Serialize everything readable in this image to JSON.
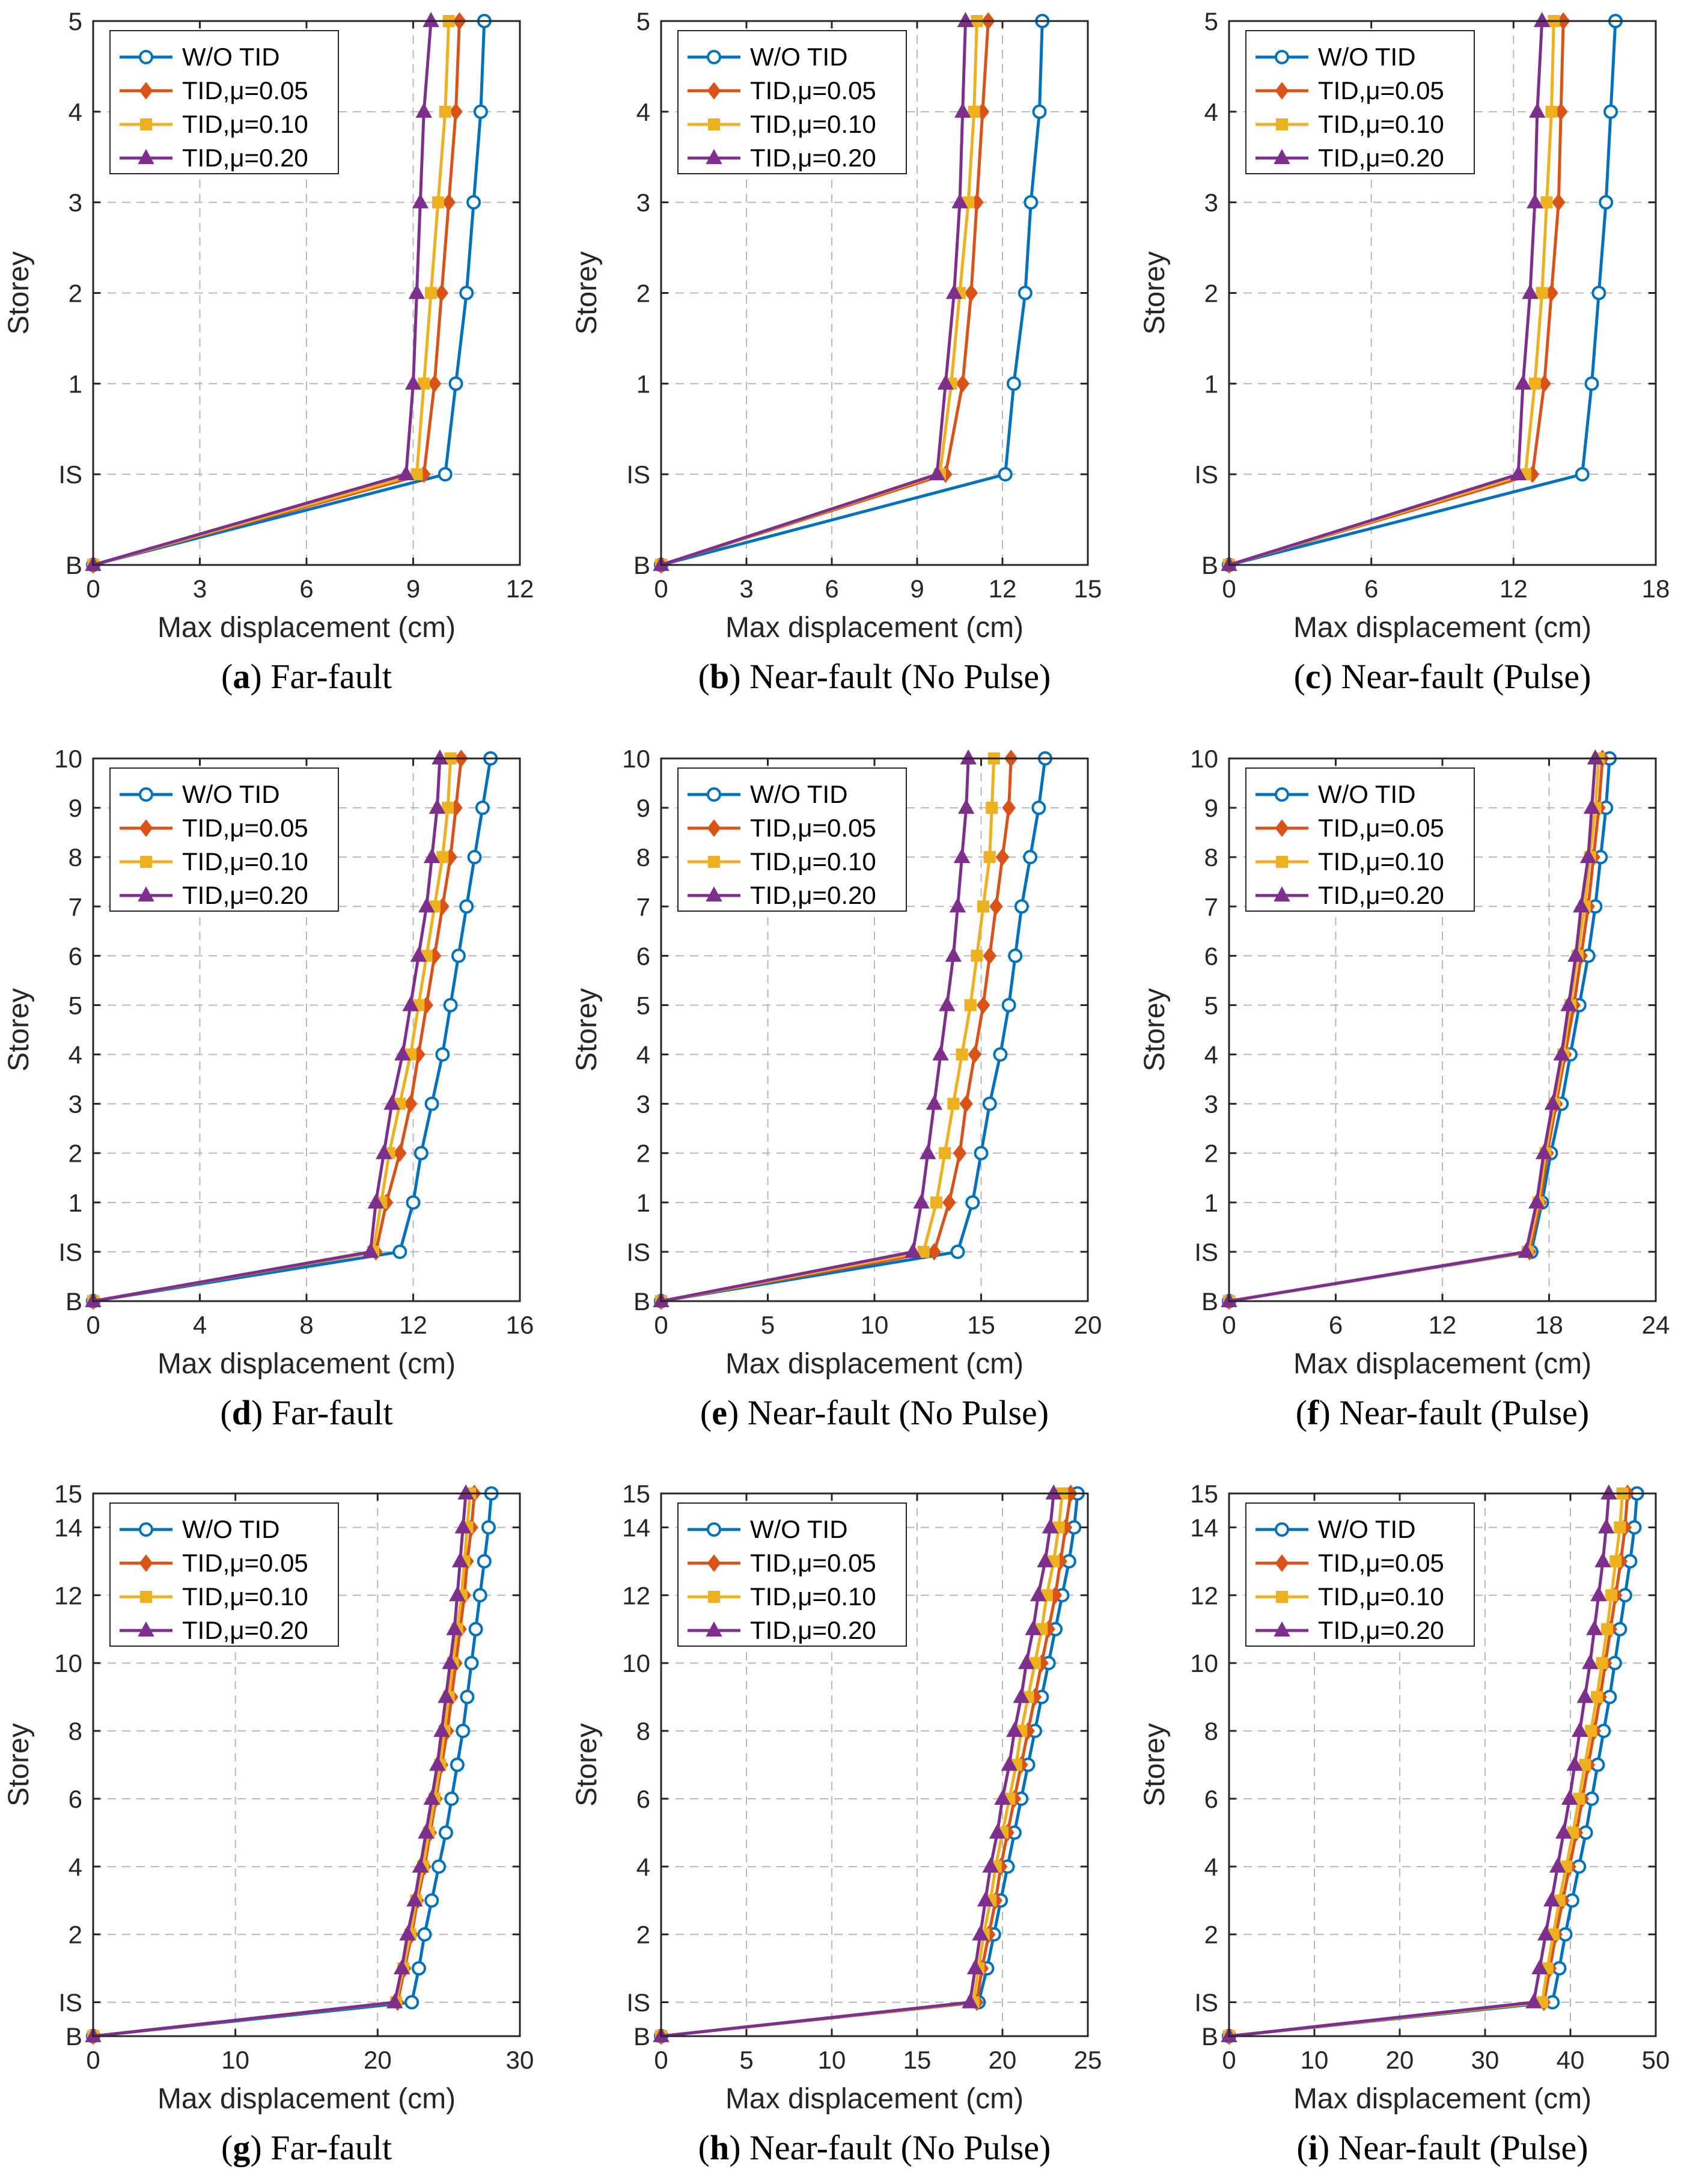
{
  "legend": {
    "entries": [
      "W/O TID",
      "TID,μ=0.05",
      "TID,μ=0.10",
      "TID,μ=0.20"
    ]
  },
  "series_styles": [
    {
      "name": "W/O TID",
      "color": "#0072BD",
      "marker": "circle"
    },
    {
      "name": "TID,μ=0.05",
      "color": "#D95319",
      "marker": "diamond"
    },
    {
      "name": "TID,μ=0.10",
      "color": "#EDB120",
      "marker": "square"
    },
    {
      "name": "TID,μ=0.20",
      "color": "#7E2F8E",
      "marker": "triangle"
    }
  ],
  "chart_data": [
    {
      "type": "line",
      "panel": "a",
      "caption_letter": "a",
      "caption_text": " Far-fault",
      "xlabel": "Max displacement (cm)",
      "ylabel": "Storey",
      "xlim": [
        0,
        12
      ],
      "xticks": [
        0,
        3,
        6,
        9,
        12
      ],
      "y_levels": [
        "B",
        "IS",
        "1",
        "2",
        "3",
        "4",
        "5"
      ],
      "yticks": [
        "B",
        "IS",
        "1",
        "2",
        "3",
        "4",
        "5"
      ],
      "grid": true,
      "legend_position": "top-left",
      "series": [
        {
          "name": "W/O TID",
          "values": [
            0,
            9.9,
            10.2,
            10.5,
            10.7,
            10.9,
            11.0
          ]
        },
        {
          "name": "TID,μ=0.05",
          "values": [
            0,
            9.3,
            9.6,
            9.8,
            10.0,
            10.2,
            10.3
          ]
        },
        {
          "name": "TID,μ=0.10",
          "values": [
            0,
            9.1,
            9.3,
            9.5,
            9.7,
            9.9,
            10.0
          ]
        },
        {
          "name": "TID,μ=0.20",
          "values": [
            0,
            8.8,
            9.0,
            9.1,
            9.2,
            9.3,
            9.5
          ]
        }
      ]
    },
    {
      "type": "line",
      "panel": "b",
      "caption_letter": "b",
      "caption_text": " Near-fault (No Pulse)",
      "xlabel": "Max displacement (cm)",
      "ylabel": "Storey",
      "xlim": [
        0,
        15
      ],
      "xticks": [
        0,
        3,
        6,
        9,
        12,
        15
      ],
      "y_levels": [
        "B",
        "IS",
        "1",
        "2",
        "3",
        "4",
        "5"
      ],
      "yticks": [
        "B",
        "IS",
        "1",
        "2",
        "3",
        "4",
        "5"
      ],
      "grid": true,
      "legend_position": "top-left",
      "series": [
        {
          "name": "W/O TID",
          "values": [
            0,
            12.1,
            12.4,
            12.8,
            13.0,
            13.3,
            13.4
          ]
        },
        {
          "name": "TID,μ=0.05",
          "values": [
            0,
            10.0,
            10.6,
            10.9,
            11.1,
            11.3,
            11.5
          ]
        },
        {
          "name": "TID,μ=0.10",
          "values": [
            0,
            9.8,
            10.2,
            10.5,
            10.8,
            11.0,
            11.1
          ]
        },
        {
          "name": "TID,μ=0.20",
          "values": [
            0,
            9.7,
            10.0,
            10.3,
            10.5,
            10.6,
            10.7
          ]
        }
      ]
    },
    {
      "type": "line",
      "panel": "c",
      "caption_letter": "c",
      "caption_text": " Near-fault (Pulse)",
      "xlabel": "Max displacement (cm)",
      "ylabel": "Storey",
      "xlim": [
        0,
        18
      ],
      "xticks": [
        0,
        6,
        12,
        18
      ],
      "y_levels": [
        "B",
        "IS",
        "1",
        "2",
        "3",
        "4",
        "5"
      ],
      "yticks": [
        "B",
        "IS",
        "1",
        "2",
        "3",
        "4",
        "5"
      ],
      "grid": true,
      "legend_position": "top-left",
      "series": [
        {
          "name": "W/O TID",
          "values": [
            0,
            14.9,
            15.3,
            15.6,
            15.9,
            16.1,
            16.3
          ]
        },
        {
          "name": "TID,μ=0.05",
          "values": [
            0,
            12.8,
            13.3,
            13.6,
            13.9,
            14.0,
            14.1
          ]
        },
        {
          "name": "TID,μ=0.10",
          "values": [
            0,
            12.5,
            12.9,
            13.2,
            13.4,
            13.6,
            13.7
          ]
        },
        {
          "name": "TID,μ=0.20",
          "values": [
            0,
            12.2,
            12.4,
            12.7,
            12.9,
            13.0,
            13.2
          ]
        }
      ]
    },
    {
      "type": "line",
      "panel": "d",
      "caption_letter": "d",
      "caption_text": " Far-fault",
      "xlabel": "Max displacement (cm)",
      "ylabel": "Storey",
      "xlim": [
        0,
        16
      ],
      "xticks": [
        0,
        4,
        8,
        12,
        16
      ],
      "y_levels": [
        "B",
        "IS",
        "1",
        "2",
        "3",
        "4",
        "5",
        "6",
        "7",
        "8",
        "9",
        "10"
      ],
      "yticks": [
        "B",
        "IS",
        "1",
        "2",
        "3",
        "4",
        "5",
        "6",
        "7",
        "8",
        "9",
        "10"
      ],
      "grid": true,
      "legend_position": "top-left",
      "series": [
        {
          "name": "W/O TID",
          "values": [
            0,
            11.5,
            12.0,
            12.3,
            12.7,
            13.1,
            13.4,
            13.7,
            14.0,
            14.3,
            14.6,
            14.9
          ]
        },
        {
          "name": "TID,μ=0.05",
          "values": [
            0,
            10.6,
            11.0,
            11.5,
            11.9,
            12.2,
            12.5,
            12.8,
            13.1,
            13.4,
            13.6,
            13.8
          ]
        },
        {
          "name": "TID,μ=0.10",
          "values": [
            0,
            10.5,
            10.8,
            11.1,
            11.5,
            11.9,
            12.2,
            12.5,
            12.8,
            13.1,
            13.3,
            13.4
          ]
        },
        {
          "name": "TID,μ=0.20",
          "values": [
            0,
            10.4,
            10.6,
            10.9,
            11.2,
            11.6,
            11.9,
            12.2,
            12.5,
            12.7,
            12.9,
            13.0
          ]
        }
      ]
    },
    {
      "type": "line",
      "panel": "e",
      "caption_letter": "e",
      "caption_text": " Near-fault (No Pulse)",
      "xlabel": "Max displacement (cm)",
      "ylabel": "Storey",
      "xlim": [
        0,
        20
      ],
      "xticks": [
        0,
        5,
        10,
        15,
        20
      ],
      "y_levels": [
        "B",
        "IS",
        "1",
        "2",
        "3",
        "4",
        "5",
        "6",
        "7",
        "8",
        "9",
        "10"
      ],
      "yticks": [
        "B",
        "IS",
        "1",
        "2",
        "3",
        "4",
        "5",
        "6",
        "7",
        "8",
        "9",
        "10"
      ],
      "grid": true,
      "legend_position": "top-left",
      "series": [
        {
          "name": "W/O TID",
          "values": [
            0,
            13.9,
            14.6,
            15.0,
            15.4,
            15.9,
            16.3,
            16.6,
            16.9,
            17.3,
            17.7,
            18.0
          ]
        },
        {
          "name": "TID,μ=0.05",
          "values": [
            0,
            12.8,
            13.5,
            14.0,
            14.3,
            14.7,
            15.1,
            15.4,
            15.7,
            16.0,
            16.3,
            16.4
          ]
        },
        {
          "name": "TID,μ=0.10",
          "values": [
            0,
            12.3,
            12.9,
            13.3,
            13.7,
            14.1,
            14.5,
            14.8,
            15.1,
            15.4,
            15.5,
            15.6
          ]
        },
        {
          "name": "TID,μ=0.20",
          "values": [
            0,
            11.8,
            12.2,
            12.5,
            12.8,
            13.1,
            13.4,
            13.7,
            13.9,
            14.1,
            14.3,
            14.4
          ]
        }
      ]
    },
    {
      "type": "line",
      "panel": "f",
      "caption_letter": "f",
      "caption_text": " Near-fault (Pulse)",
      "xlabel": "Max displacement (cm)",
      "ylabel": "Storey",
      "xlim": [
        0,
        24
      ],
      "xticks": [
        0,
        6,
        12,
        18,
        24
      ],
      "y_levels": [
        "B",
        "IS",
        "1",
        "2",
        "3",
        "4",
        "5",
        "6",
        "7",
        "8",
        "9",
        "10"
      ],
      "yticks": [
        "B",
        "IS",
        "1",
        "2",
        "3",
        "4",
        "5",
        "6",
        "7",
        "8",
        "9",
        "10"
      ],
      "grid": true,
      "legend_position": "top-left",
      "series": [
        {
          "name": "W/O TID",
          "values": [
            0,
            17.0,
            17.6,
            18.1,
            18.7,
            19.2,
            19.7,
            20.2,
            20.6,
            20.9,
            21.2,
            21.4
          ]
        },
        {
          "name": "TID,μ=0.05",
          "values": [
            0,
            16.9,
            17.5,
            17.9,
            18.4,
            18.9,
            19.4,
            19.8,
            20.2,
            20.5,
            20.8,
            21.0
          ]
        },
        {
          "name": "TID,μ=0.10",
          "values": [
            0,
            16.8,
            17.4,
            17.8,
            18.3,
            18.8,
            19.2,
            19.6,
            20.0,
            20.3,
            20.6,
            20.8
          ]
        },
        {
          "name": "TID,μ=0.20",
          "values": [
            0,
            16.7,
            17.3,
            17.7,
            18.2,
            18.7,
            19.1,
            19.5,
            19.8,
            20.2,
            20.4,
            20.6
          ]
        }
      ]
    },
    {
      "type": "line",
      "panel": "g",
      "caption_letter": "g",
      "caption_text": " Far-fault",
      "xlabel": "Max displacement (cm)",
      "ylabel": "Storey",
      "xlim": [
        0,
        30
      ],
      "xticks": [
        0,
        10,
        20,
        30
      ],
      "y_levels": [
        "B",
        "IS",
        "1",
        "2",
        "3",
        "4",
        "5",
        "6",
        "7",
        "8",
        "9",
        "10",
        "11",
        "12",
        "13",
        "14",
        "15"
      ],
      "yticks": [
        "B",
        "IS",
        "2",
        "4",
        "6",
        "8",
        "10",
        "12",
        "14",
        "15"
      ],
      "grid": true,
      "legend_position": "top-left",
      "series": [
        {
          "name": "W/O TID",
          "values": [
            0,
            22.4,
            22.9,
            23.3,
            23.8,
            24.3,
            24.8,
            25.2,
            25.6,
            26.0,
            26.3,
            26.6,
            26.9,
            27.2,
            27.5,
            27.8,
            28.0
          ]
        },
        {
          "name": "TID,μ=0.05",
          "values": [
            0,
            21.4,
            21.9,
            22.4,
            22.8,
            23.3,
            23.7,
            24.1,
            24.5,
            24.9,
            25.2,
            25.5,
            25.8,
            26.1,
            26.3,
            26.6,
            26.8
          ]
        },
        {
          "name": "TID,μ=0.10",
          "values": [
            0,
            21.3,
            21.8,
            22.3,
            22.7,
            23.2,
            23.6,
            24.0,
            24.4,
            24.7,
            25.0,
            25.3,
            25.6,
            25.9,
            26.1,
            26.3,
            26.5
          ]
        },
        {
          "name": "TID,μ=0.20",
          "values": [
            0,
            21.2,
            21.7,
            22.1,
            22.6,
            23.0,
            23.4,
            23.8,
            24.2,
            24.5,
            24.8,
            25.1,
            25.4,
            25.6,
            25.8,
            26.0,
            26.2
          ]
        }
      ]
    },
    {
      "type": "line",
      "panel": "h",
      "caption_letter": "h",
      "caption_text": " Near-fault (No Pulse)",
      "xlabel": "Max displacement (cm)",
      "ylabel": "Storey",
      "xlim": [
        0,
        25
      ],
      "xticks": [
        0,
        5,
        10,
        15,
        20,
        25
      ],
      "y_levels": [
        "B",
        "IS",
        "1",
        "2",
        "3",
        "4",
        "5",
        "6",
        "7",
        "8",
        "9",
        "10",
        "11",
        "12",
        "13",
        "14",
        "15"
      ],
      "yticks": [
        "B",
        "IS",
        "2",
        "4",
        "6",
        "8",
        "10",
        "12",
        "14",
        "15"
      ],
      "grid": true,
      "legend_position": "top-left",
      "series": [
        {
          "name": "W/O TID",
          "values": [
            0,
            18.6,
            19.1,
            19.5,
            19.9,
            20.3,
            20.7,
            21.1,
            21.5,
            21.9,
            22.3,
            22.7,
            23.1,
            23.5,
            23.9,
            24.2,
            24.4
          ]
        },
        {
          "name": "TID,μ=0.05",
          "values": [
            0,
            18.5,
            18.8,
            19.2,
            19.6,
            19.9,
            20.3,
            20.7,
            21.1,
            21.5,
            21.9,
            22.3,
            22.7,
            23.1,
            23.4,
            23.7,
            24.0
          ]
        },
        {
          "name": "TID,μ=0.10",
          "values": [
            0,
            18.3,
            18.6,
            18.9,
            19.3,
            19.6,
            20.0,
            20.4,
            20.8,
            21.1,
            21.5,
            21.9,
            22.3,
            22.6,
            23.0,
            23.3,
            23.5
          ]
        },
        {
          "name": "TID,μ=0.20",
          "values": [
            0,
            18.1,
            18.4,
            18.7,
            19.0,
            19.3,
            19.7,
            20.0,
            20.4,
            20.7,
            21.1,
            21.4,
            21.8,
            22.1,
            22.5,
            22.8,
            23.0
          ]
        }
      ]
    },
    {
      "type": "line",
      "panel": "i",
      "caption_letter": "i",
      "caption_text": " Near-fault (Pulse)",
      "xlabel": "Max displacement (cm)",
      "ylabel": "Storey",
      "xlim": [
        0,
        50
      ],
      "xticks": [
        0,
        10,
        20,
        30,
        40,
        50
      ],
      "y_levels": [
        "B",
        "IS",
        "1",
        "2",
        "3",
        "4",
        "5",
        "6",
        "7",
        "8",
        "9",
        "10",
        "11",
        "12",
        "13",
        "14",
        "15"
      ],
      "yticks": [
        "B",
        "IS",
        "2",
        "4",
        "6",
        "8",
        "10",
        "12",
        "14",
        "15"
      ],
      "grid": true,
      "legend_position": "top-left",
      "series": [
        {
          "name": "W/O TID",
          "values": [
            0,
            37.9,
            38.7,
            39.4,
            40.2,
            41.0,
            41.8,
            42.5,
            43.2,
            43.9,
            44.6,
            45.2,
            45.8,
            46.4,
            47.0,
            47.5,
            47.8
          ]
        },
        {
          "name": "TID,μ=0.05",
          "values": [
            0,
            36.9,
            37.6,
            38.3,
            39.1,
            39.9,
            40.7,
            41.4,
            42.1,
            42.8,
            43.5,
            44.1,
            44.7,
            45.3,
            45.9,
            46.4,
            46.7
          ]
        },
        {
          "name": "TID,μ=0.10",
          "values": [
            0,
            36.7,
            37.3,
            38.0,
            38.7,
            39.5,
            40.3,
            41.0,
            41.7,
            42.4,
            43.1,
            43.7,
            44.3,
            44.8,
            45.3,
            45.8,
            46.1
          ]
        },
        {
          "name": "TID,μ=0.20",
          "values": [
            0,
            35.7,
            36.4,
            37.1,
            37.8,
            38.5,
            39.2,
            39.9,
            40.5,
            41.1,
            41.7,
            42.3,
            42.8,
            43.3,
            43.8,
            44.2,
            44.5
          ]
        }
      ]
    }
  ]
}
